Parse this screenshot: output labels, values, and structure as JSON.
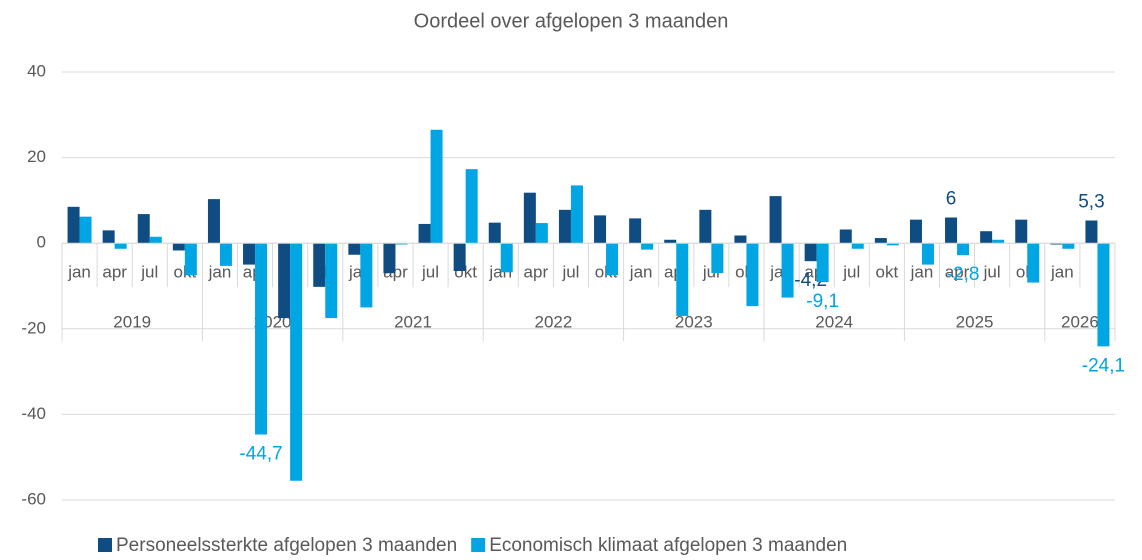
{
  "chart_data": {
    "type": "bar",
    "title": "Oordeel over afgelopen 3 maanden",
    "groups": [
      {
        "label": "2019",
        "categories": [
          "jan",
          "apr",
          "jul",
          "okt"
        ]
      },
      {
        "label": "2020",
        "categories": [
          "jan",
          "apr",
          "jul",
          "okt"
        ]
      },
      {
        "label": "2021",
        "categories": [
          "jan",
          "apr",
          "jul",
          "okt"
        ]
      },
      {
        "label": "2022",
        "categories": [
          "jan",
          "apr",
          "jul",
          "okt"
        ]
      },
      {
        "label": "2023",
        "categories": [
          "jan",
          "apr",
          "jul",
          "okt"
        ]
      },
      {
        "label": "2024",
        "categories": [
          "jan",
          "apr",
          "jul",
          "okt"
        ]
      },
      {
        "label": "2025",
        "categories": [
          "jan",
          "apr",
          "jul",
          "okt"
        ]
      },
      {
        "label": "2026",
        "categories": [
          "jan",
          null
        ]
      }
    ],
    "series": [
      {
        "name": "Personeelssterkte afgelopen 3 maanden",
        "color": "#0f4c81",
        "values": [
          8.5,
          3,
          6.8,
          -1.7,
          10.3,
          -5,
          -17.5,
          -10.2,
          -2.7,
          -7,
          4.5,
          -6.5,
          4.8,
          11.8,
          7.8,
          6.5,
          5.8,
          0.8,
          7.8,
          1.8,
          11,
          -4.2,
          3.2,
          1.2,
          5.5,
          6,
          2.8,
          5.5,
          -0.3,
          5.3
        ],
        "value_labels": [
          null,
          null,
          null,
          null,
          null,
          null,
          null,
          null,
          null,
          null,
          null,
          null,
          null,
          null,
          null,
          null,
          null,
          null,
          null,
          null,
          null,
          "-4,2",
          null,
          null,
          null,
          "6",
          null,
          null,
          null,
          "5,3"
        ]
      },
      {
        "name": "Economisch klimaat afgelopen 3 maanden",
        "color": "#00a5e3",
        "values": [
          6.2,
          -1.3,
          1.5,
          -7.5,
          -5.3,
          -44.7,
          -55.5,
          -17.5,
          -15,
          -0.3,
          26.5,
          17.3,
          -6.8,
          4.7,
          13.5,
          -7.5,
          -1.5,
          -17,
          -7,
          -14.7,
          -12.7,
          -9.1,
          -1.3,
          -0.5,
          -5,
          -2.8,
          0.8,
          -9.2,
          -1.3,
          -24.1
        ],
        "value_labels": [
          null,
          null,
          null,
          null,
          null,
          "-44,7",
          null,
          null,
          null,
          null,
          null,
          null,
          null,
          null,
          null,
          null,
          null,
          null,
          null,
          null,
          null,
          "-9,1",
          null,
          null,
          null,
          "-2,8",
          null,
          null,
          null,
          "-24,1"
        ]
      }
    ],
    "ylim": [
      -60,
      40
    ],
    "yticks": [
      -60,
      -40,
      -20,
      0,
      20,
      40
    ],
    "grid": true,
    "legend": "bottom"
  }
}
